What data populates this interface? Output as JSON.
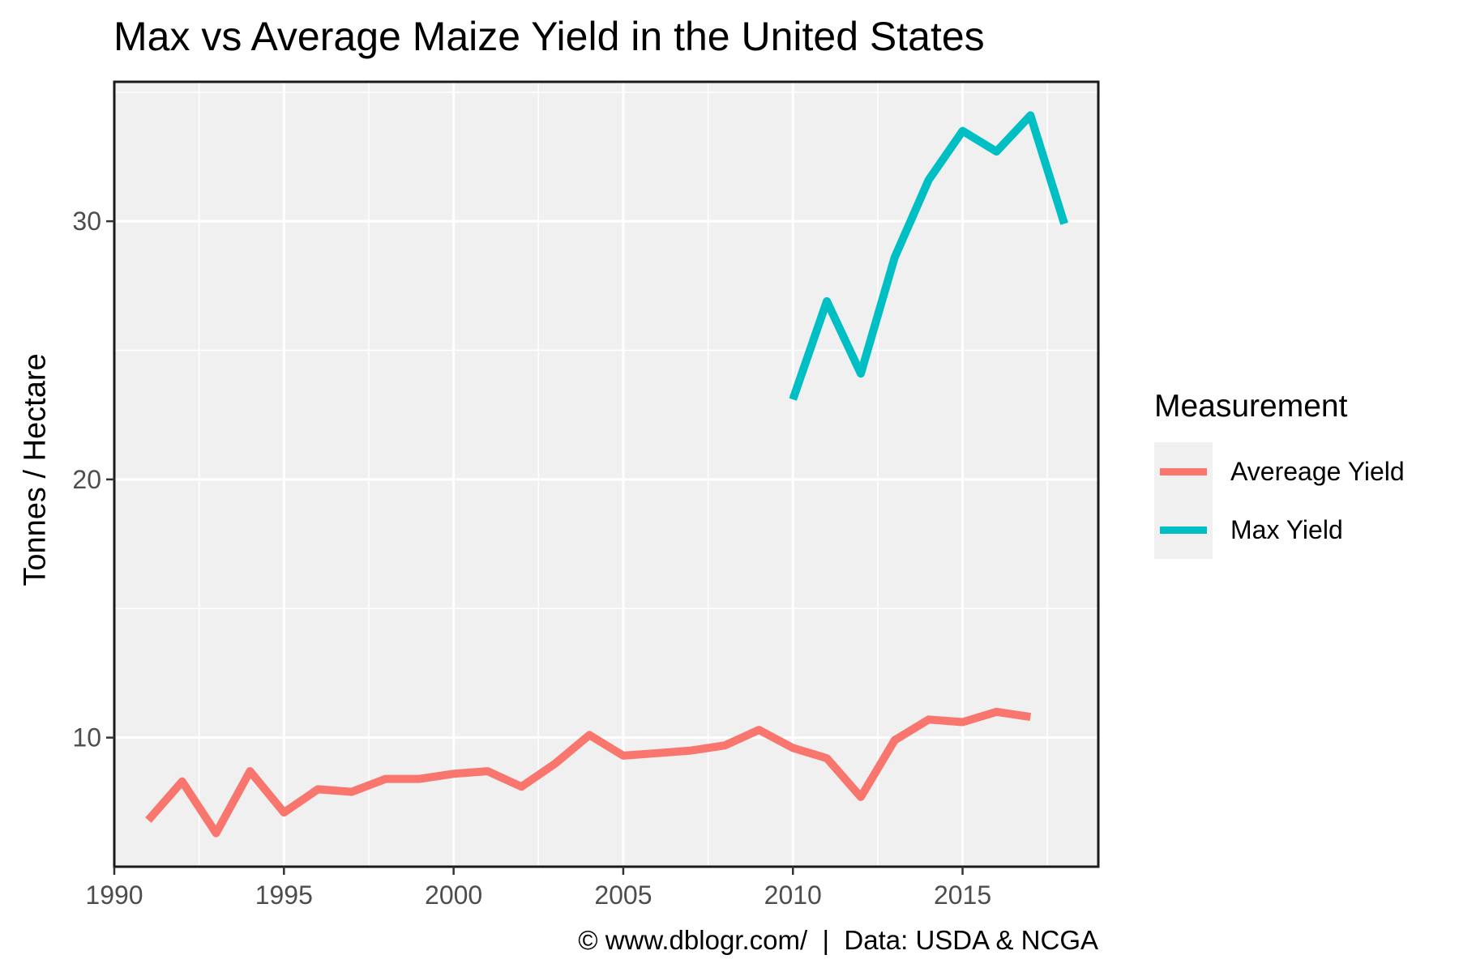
{
  "chart_data": {
    "type": "line",
    "title": "Max vs Average Maize Yield in the United States",
    "xlabel": "",
    "ylabel": "Tonnes / Hectare",
    "caption": "© www.dblogr.com/  |  Data: USDA & NCGA",
    "xlim": [
      1990,
      2019
    ],
    "ylim": [
      5,
      35.4
    ],
    "xticks": [
      1990,
      1995,
      2000,
      2005,
      2010,
      2015
    ],
    "yticks": [
      10,
      20,
      30
    ],
    "grid": true,
    "legend": {
      "title": "Measurement",
      "position": "right"
    },
    "series": [
      {
        "name": "Avereage Yield",
        "color": "#f8766d",
        "x": [
          1991,
          1992,
          1993,
          1994,
          1995,
          1996,
          1997,
          1998,
          1999,
          2000,
          2001,
          2002,
          2003,
          2004,
          2005,
          2006,
          2007,
          2008,
          2009,
          2010,
          2011,
          2012,
          2013,
          2014,
          2015,
          2016,
          2017
        ],
        "y": [
          6.8,
          8.3,
          6.3,
          8.7,
          7.1,
          8.0,
          7.9,
          8.4,
          8.4,
          8.6,
          8.7,
          8.1,
          9.0,
          10.1,
          9.3,
          9.4,
          9.5,
          9.7,
          10.3,
          9.6,
          9.2,
          7.7,
          9.9,
          10.7,
          10.6,
          11.0,
          10.8
        ]
      },
      {
        "name": "Max Yield",
        "color": "#00bfc4",
        "x": [
          2010,
          2011,
          2012,
          2013,
          2014,
          2015,
          2016,
          2017,
          2018
        ],
        "y": [
          23.1,
          26.9,
          24.1,
          28.6,
          31.6,
          33.5,
          32.7,
          34.1,
          29.9
        ]
      }
    ]
  }
}
